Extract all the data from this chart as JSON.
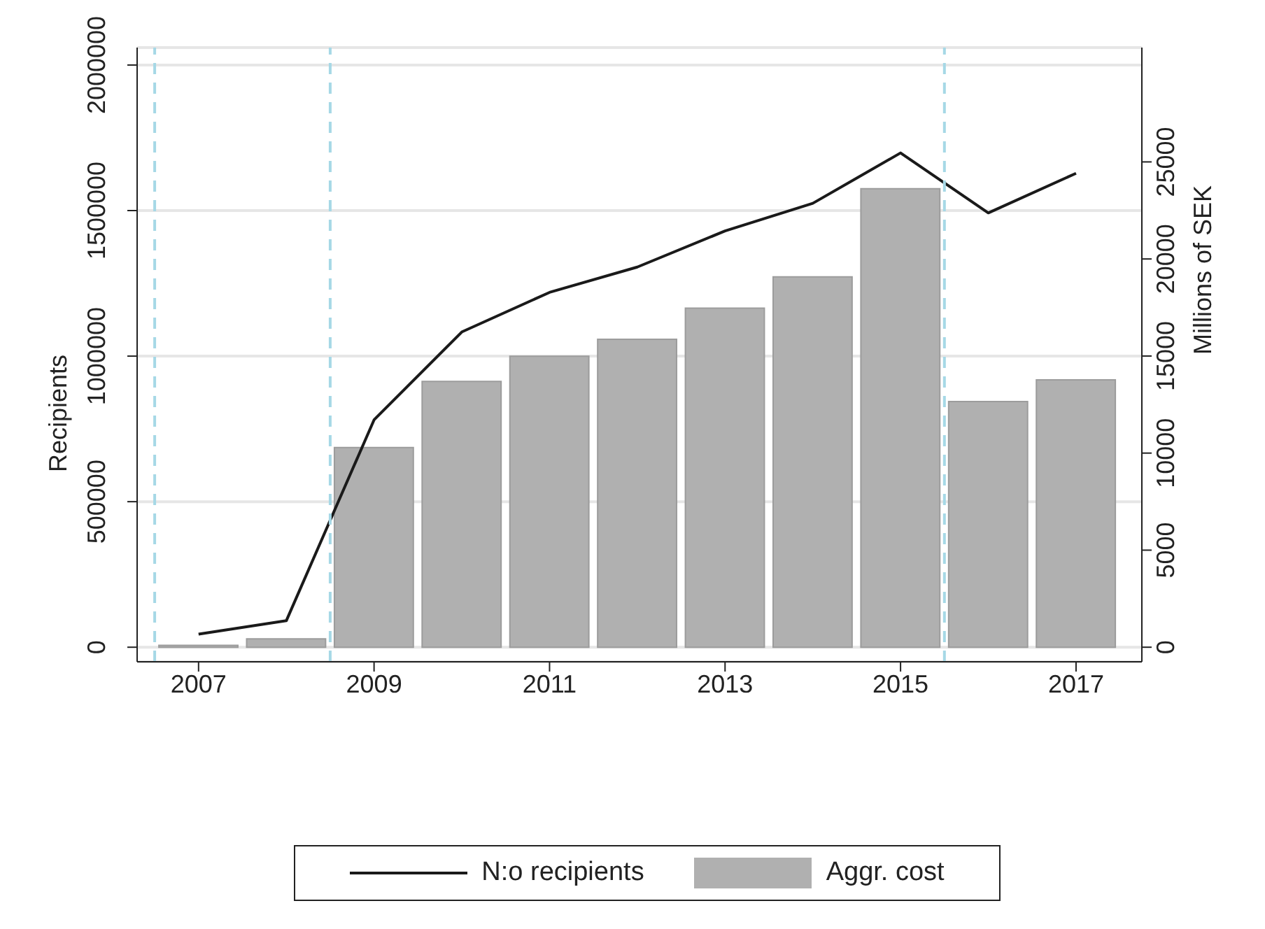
{
  "chart_data": {
    "type": "bar",
    "x": [
      2007,
      2008,
      2009,
      2010,
      2011,
      2012,
      2013,
      2014,
      2015,
      2016,
      2017
    ],
    "series": [
      {
        "name": "N:o recipients",
        "type": "line",
        "color": "#1a1a1a",
        "values": [
          45000,
          91000,
          781000,
          1083000,
          1219000,
          1306000,
          1430000,
          1525000,
          1698000,
          1492000,
          1628000
        ]
      },
      {
        "name": "Aggr. cost",
        "axis": "y2",
        "color": "#b0b0b0",
        "values": [
          100,
          430,
          10290,
          13690,
          14990,
          15860,
          17470,
          19080,
          23620,
          12660,
          13770
        ]
      }
    ],
    "xlim": [
      2006.3,
      2017.75
    ],
    "xticks": [
      2007,
      2009,
      2011,
      2013,
      2015,
      2017
    ],
    "ylim": [
      -50000,
      2060000
    ],
    "yticks": [
      0,
      500000,
      1000000,
      1500000,
      2000000
    ],
    "y2lim": [
      -750,
      30890
    ],
    "y2ticks": [
      0,
      5000,
      10000,
      15000,
      20000,
      25000
    ],
    "ylabel": "Recipients",
    "y2label": "Millions of SEK",
    "ref_lines": [
      {
        "axis": "x",
        "value": 2006.5,
        "color": "#a6d8e6",
        "line_style": "dashed"
      },
      {
        "axis": "x",
        "value": 2008.5,
        "color": "#a6d8e6",
        "line_style": "dashed"
      },
      {
        "axis": "x",
        "value": 2015.5,
        "color": "#a6d8e6",
        "line_style": "dashed"
      }
    ],
    "grid": "y",
    "legend": "bottom",
    "marker": "none",
    "line_style": "solid"
  }
}
